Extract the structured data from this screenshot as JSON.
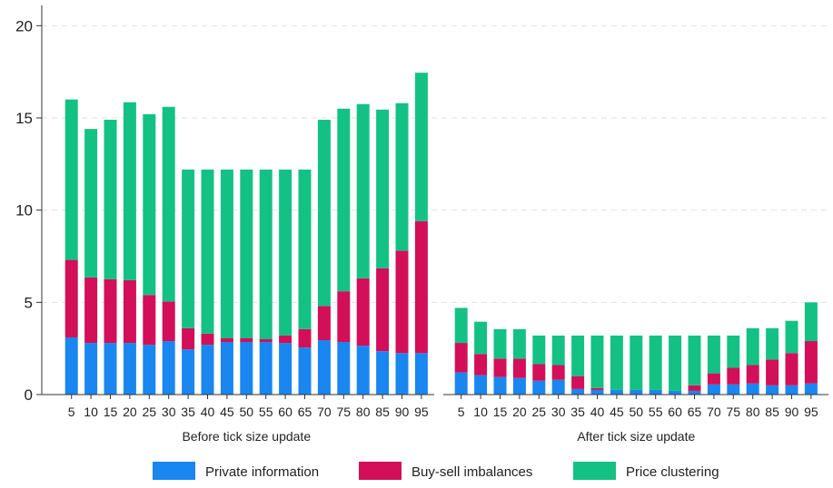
{
  "colors": {
    "private_information": "#1a86f0",
    "buy_sell_imbalances": "#d20f58",
    "price_clustering": "#14c185",
    "grid": "#e2e2e2",
    "axis": "#333333"
  },
  "chart_data": {
    "type": "bar",
    "stacked": true,
    "ylim": [
      0,
      21
    ],
    "yticks": [
      0,
      5,
      10,
      15,
      20
    ],
    "grid": true,
    "legend_position": "bottom",
    "categories": [
      "5",
      "10",
      "15",
      "20",
      "25",
      "30",
      "35",
      "40",
      "45",
      "50",
      "55",
      "60",
      "65",
      "70",
      "75",
      "80",
      "85",
      "90",
      "95"
    ],
    "legend": [
      "Private information",
      "Buy-sell imbalances",
      "Price clustering"
    ],
    "panels": [
      {
        "label": "Before tick size update",
        "series": [
          {
            "name": "Private information",
            "values": [
              3.1,
              2.8,
              2.8,
              2.8,
              2.7,
              2.9,
              2.45,
              2.7,
              2.85,
              2.85,
              2.85,
              2.8,
              2.55,
              2.95,
              2.85,
              2.65,
              2.35,
              2.25,
              2.25
            ]
          },
          {
            "name": "Buy-sell imbalances",
            "values": [
              4.2,
              3.55,
              3.45,
              3.4,
              2.7,
              2.15,
              1.15,
              0.6,
              0.2,
              0.2,
              0.15,
              0.4,
              1.0,
              1.85,
              2.75,
              3.65,
              4.5,
              5.55,
              7.15
            ]
          },
          {
            "name": "Price clustering",
            "values": [
              8.7,
              8.05,
              8.65,
              9.65,
              9.8,
              10.55,
              8.6,
              8.9,
              9.15,
              9.15,
              9.2,
              9.0,
              8.65,
              10.1,
              9.9,
              9.45,
              8.6,
              8.0,
              8.05
            ]
          }
        ]
      },
      {
        "label": "After tick size update",
        "series": [
          {
            "name": "Private information",
            "values": [
              1.2,
              1.05,
              0.95,
              0.9,
              0.75,
              0.8,
              0.3,
              0.25,
              0.25,
              0.25,
              0.25,
              0.2,
              0.2,
              0.55,
              0.55,
              0.6,
              0.5,
              0.5,
              0.6
            ]
          },
          {
            "name": "Buy-sell imbalances",
            "values": [
              1.6,
              1.15,
              1.0,
              1.05,
              0.9,
              0.8,
              0.7,
              0.1,
              0.0,
              0.0,
              0.0,
              0.0,
              0.3,
              0.6,
              0.9,
              1.0,
              1.4,
              1.75,
              2.3
            ]
          },
          {
            "name": "Price clustering",
            "values": [
              1.9,
              1.75,
              1.6,
              1.6,
              1.55,
              1.6,
              2.2,
              2.85,
              2.95,
              2.95,
              2.95,
              3.0,
              2.7,
              2.05,
              1.75,
              2.0,
              1.7,
              1.75,
              2.1
            ]
          }
        ]
      }
    ]
  }
}
